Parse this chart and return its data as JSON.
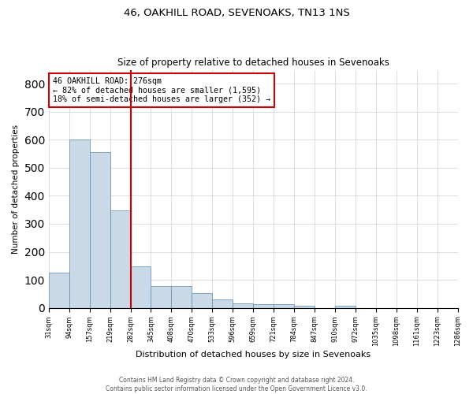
{
  "title": "46, OAKHILL ROAD, SEVENOAKS, TN13 1NS",
  "subtitle": "Size of property relative to detached houses in Sevenoaks",
  "xlabel": "Distribution of detached houses by size in Sevenoaks",
  "ylabel": "Number of detached properties",
  "bar_color": "#c9d9e8",
  "bar_edge_color": "#5a8ab0",
  "annotation_line1": "46 OAKHILL ROAD: 276sqm",
  "annotation_line2": "← 82% of detached houses are smaller (1,595)",
  "annotation_line3": "18% of semi-detached houses are larger (352) →",
  "annotation_box_color": "#cc0000",
  "vline_color": "#cc0000",
  "ylim": [
    0,
    850
  ],
  "yticks": [
    0,
    100,
    200,
    300,
    400,
    500,
    600,
    700,
    800
  ],
  "bar_heights": [
    125,
    600,
    555,
    348,
    148,
    77,
    77,
    52,
    30,
    15,
    13,
    12,
    7,
    0,
    8,
    0,
    0,
    0,
    0,
    0
  ],
  "tick_labels": [
    "31sqm",
    "94sqm",
    "157sqm",
    "219sqm",
    "282sqm",
    "345sqm",
    "408sqm",
    "470sqm",
    "533sqm",
    "596sqm",
    "659sqm",
    "721sqm",
    "784sqm",
    "847sqm",
    "910sqm",
    "972sqm",
    "1035sqm",
    "1098sqm",
    "1161sqm",
    "1223sqm",
    "1286sqm"
  ],
  "footer_line1": "Contains HM Land Registry data © Crown copyright and database right 2024.",
  "footer_line2": "Contains public sector information licensed under the Open Government Licence v3.0.",
  "background_color": "#ffffff",
  "grid_color": "#d0d0d8"
}
